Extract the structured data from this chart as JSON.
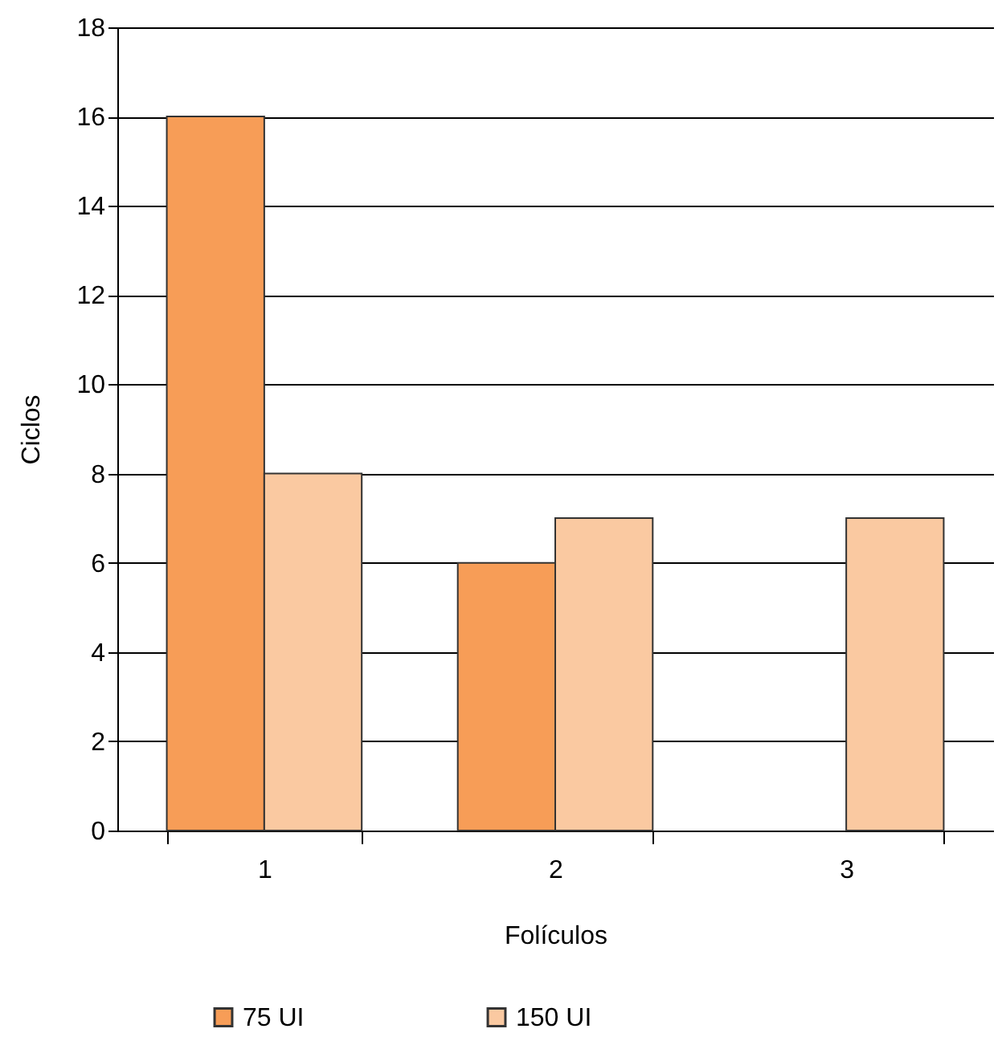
{
  "chart_data": {
    "type": "bar",
    "xlabel": "Folículos",
    "ylabel": "Ciclos",
    "categories": [
      "1",
      "2",
      "3"
    ],
    "series": [
      {
        "name": "75 UI",
        "color": "#f79d57",
        "values": [
          16,
          6,
          null
        ]
      },
      {
        "name": "150 UI",
        "color": "#fac9a1",
        "values": [
          8,
          7,
          7
        ]
      }
    ],
    "ylim": [
      0,
      18
    ],
    "yticks": [
      0,
      2,
      4,
      6,
      8,
      10,
      12,
      14,
      16,
      18
    ],
    "grid": "y",
    "legend": "bottom"
  }
}
